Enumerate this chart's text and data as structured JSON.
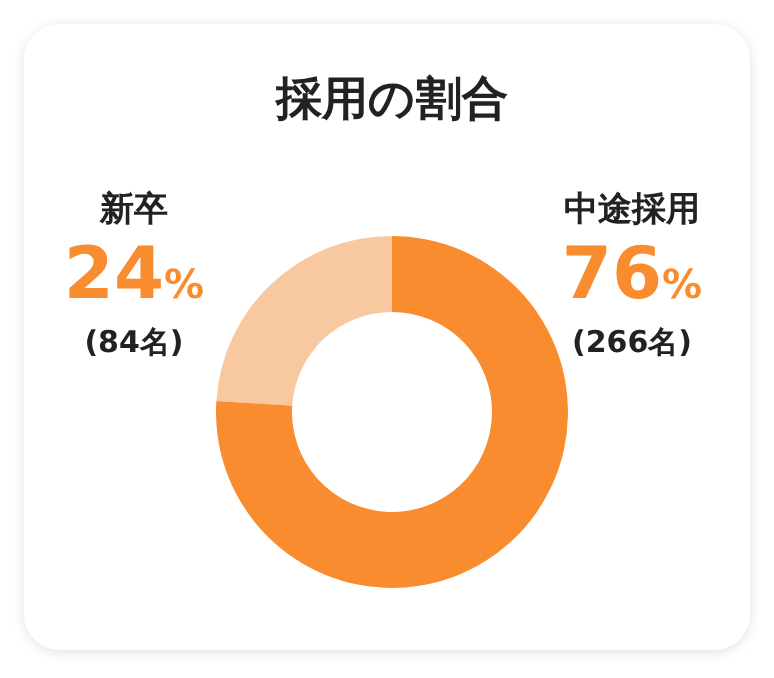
{
  "chart_data": {
    "type": "donut",
    "title": "採用の割合",
    "categories": [
      "新卒",
      "中途採用"
    ],
    "values": [
      24,
      76
    ],
    "colors": [
      "#f8c9a0",
      "#f98c2e"
    ],
    "value_labels": [
      "24%",
      "76%"
    ],
    "annotations": [
      "(84名)",
      "(266名)"
    ]
  }
}
